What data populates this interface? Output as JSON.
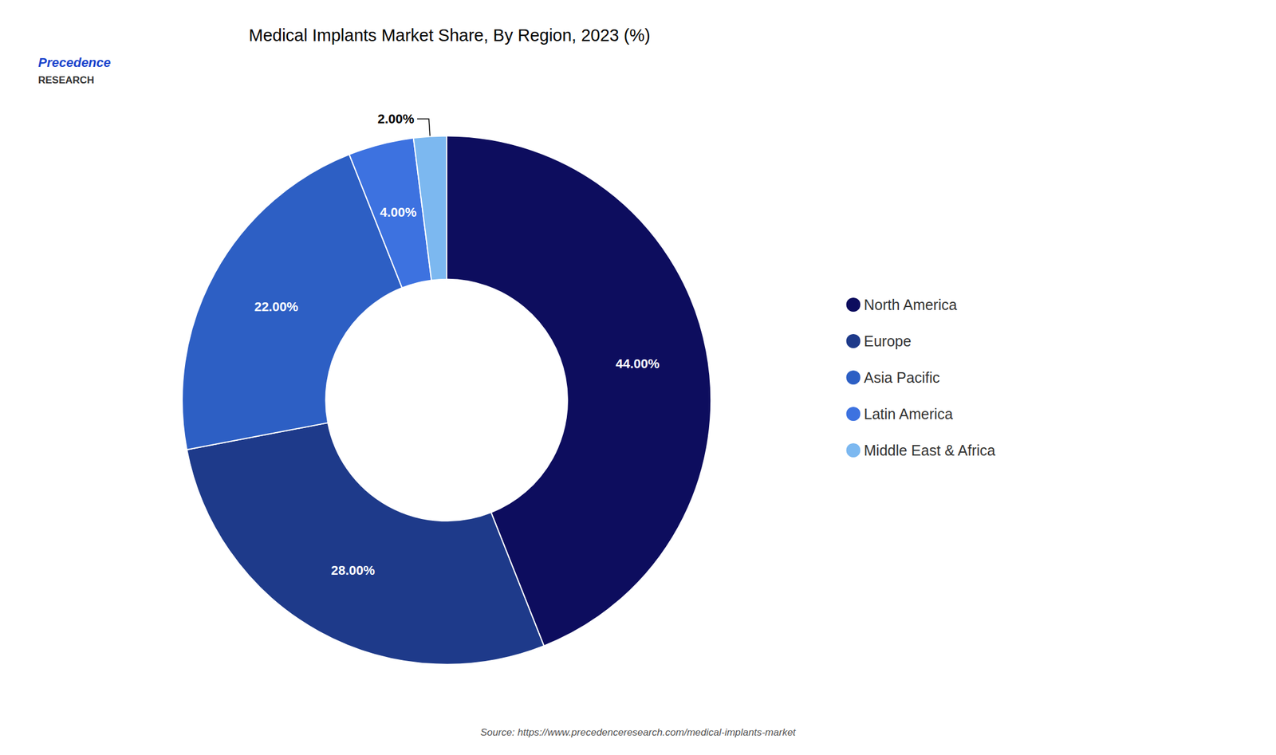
{
  "chart_data": {
    "type": "pie",
    "title": "Medical Implants Market Share, By Region, 2023 (%)",
    "categories": [
      "North America",
      "Europe",
      "Asia Pacific",
      "Latin America",
      "Middle East & Africa"
    ],
    "values": [
      44.0,
      28.0,
      22.0,
      4.0,
      2.0
    ],
    "value_labels": [
      "44.00%",
      "28.00%",
      "22.00%",
      "4.00%",
      "2.00%"
    ],
    "colors": [
      "#0d0d5e",
      "#1e3a8a",
      "#2d5fc4",
      "#3d72e0",
      "#7cb8f0"
    ],
    "data_labels": true,
    "legend": "right",
    "annotations": [
      "Precedence",
      "RESEARCH",
      "Source: https://www.precedenceresearch.com/medical-implants-market"
    ]
  }
}
